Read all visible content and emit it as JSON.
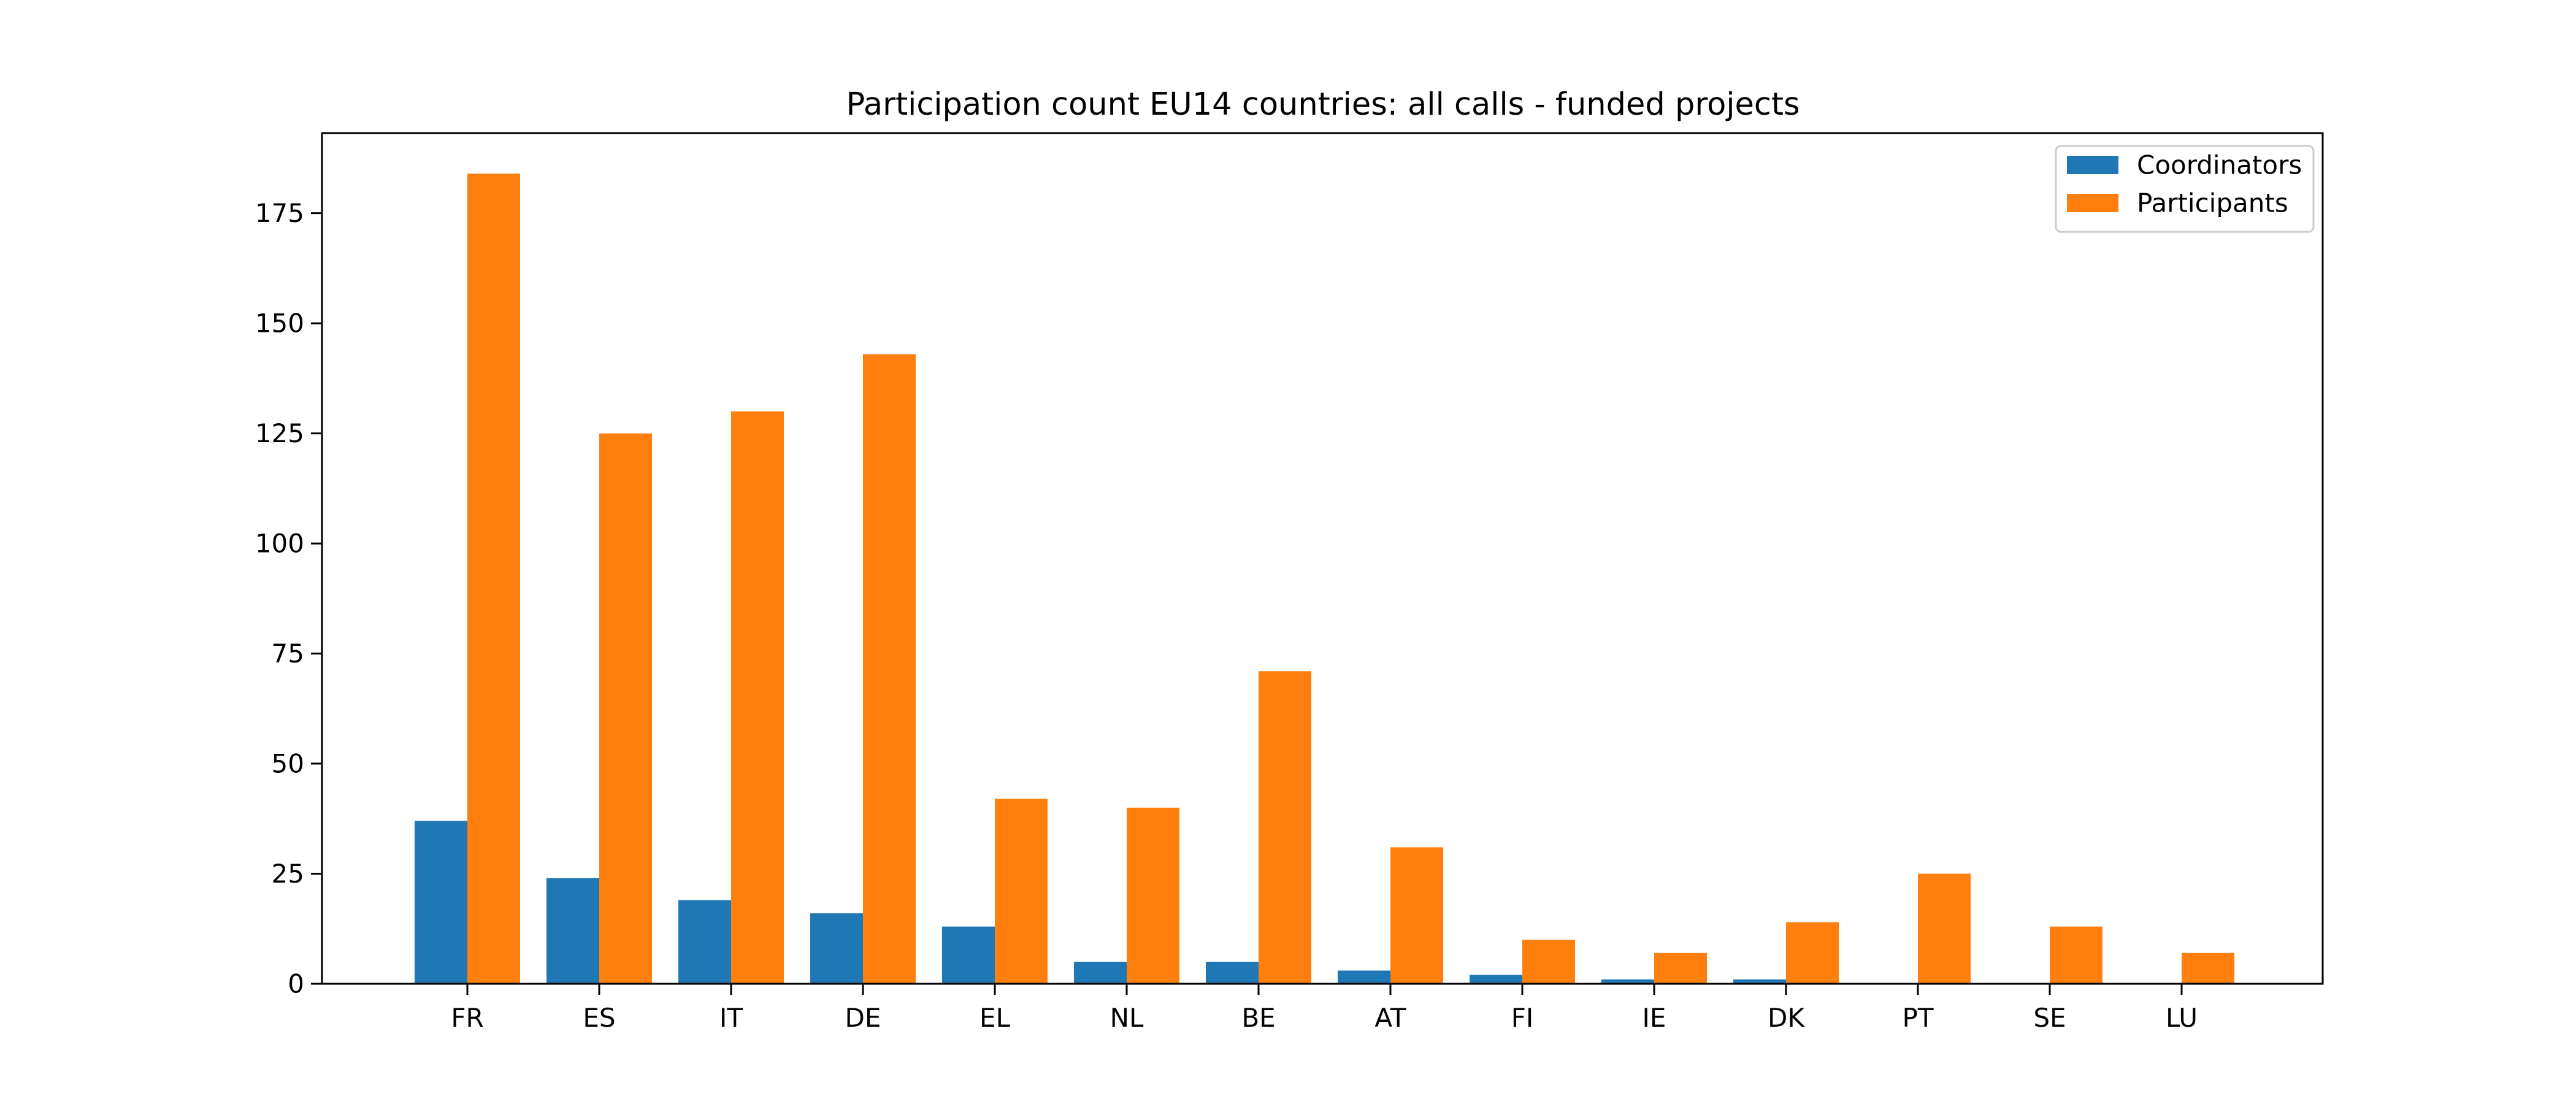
{
  "chart_data": {
    "type": "bar",
    "title": "Participation count EU14 countries: all calls - funded projects",
    "xlabel": "",
    "ylabel": "",
    "categories": [
      "FR",
      "ES",
      "IT",
      "DE",
      "EL",
      "NL",
      "BE",
      "AT",
      "FI",
      "IE",
      "DK",
      "PT",
      "SE",
      "LU"
    ],
    "series": [
      {
        "name": "Coordinators",
        "color": "#1f77b4",
        "values": [
          37,
          24,
          19,
          16,
          13,
          5,
          5,
          3,
          2,
          1,
          1,
          0,
          0,
          0
        ]
      },
      {
        "name": "Participants",
        "color": "#ff7f0e",
        "values": [
          184,
          125,
          130,
          143,
          42,
          40,
          71,
          31,
          10,
          7,
          14,
          25,
          13,
          7
        ]
      }
    ],
    "ylim": [
      0,
      193.2
    ],
    "yticks": [
      0,
      25,
      50,
      75,
      100,
      125,
      150,
      175
    ],
    "legend": "top-right",
    "grid": false
  }
}
